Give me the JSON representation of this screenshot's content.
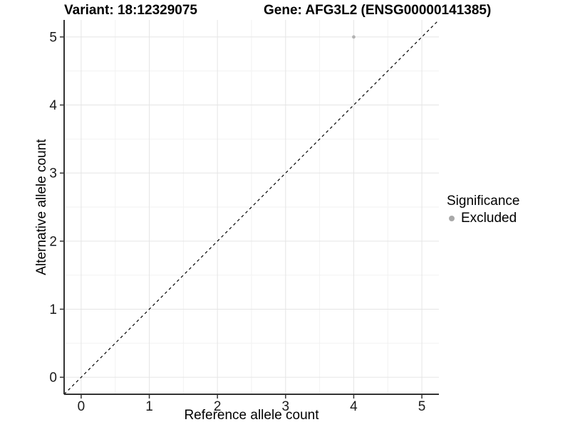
{
  "titles": {
    "variant": "Variant: 18:12329075",
    "gene": "Gene: AFG3L2 (ENSG00000141385)"
  },
  "legend": {
    "title": "Significance",
    "items": [
      {
        "label": "Excluded",
        "color": "#a9a9a9"
      }
    ]
  },
  "chart_data": {
    "type": "scatter",
    "title": "Variant: 18:12329075   Gene: AFG3L2 (ENSG00000141385)",
    "xlabel": "Reference allele count",
    "ylabel": "Alternative allele count",
    "xlim": [
      -0.25,
      5.25
    ],
    "ylim": [
      -0.25,
      5.25
    ],
    "x_ticks": [
      0,
      1,
      2,
      3,
      4,
      5
    ],
    "y_ticks": [
      0,
      1,
      2,
      3,
      4,
      5
    ],
    "grid": "major+minor",
    "legend_position": "right",
    "series": [
      {
        "name": "Excluded",
        "color": "#b3b3b3",
        "points": [
          [
            4,
            5
          ]
        ]
      }
    ],
    "reference_line": {
      "kind": "identity",
      "from": [
        -0.25,
        -0.25
      ],
      "to": [
        5.25,
        5.25
      ],
      "style": "dashed",
      "color": "#000000"
    }
  },
  "colors": {
    "axis_line": "#333333",
    "tick_mark": "#333333",
    "grid_major": "#e5e5e5",
    "grid_minor": "#f2f2f2",
    "tick_label": "#1a1a1a",
    "background": "#ffffff"
  }
}
